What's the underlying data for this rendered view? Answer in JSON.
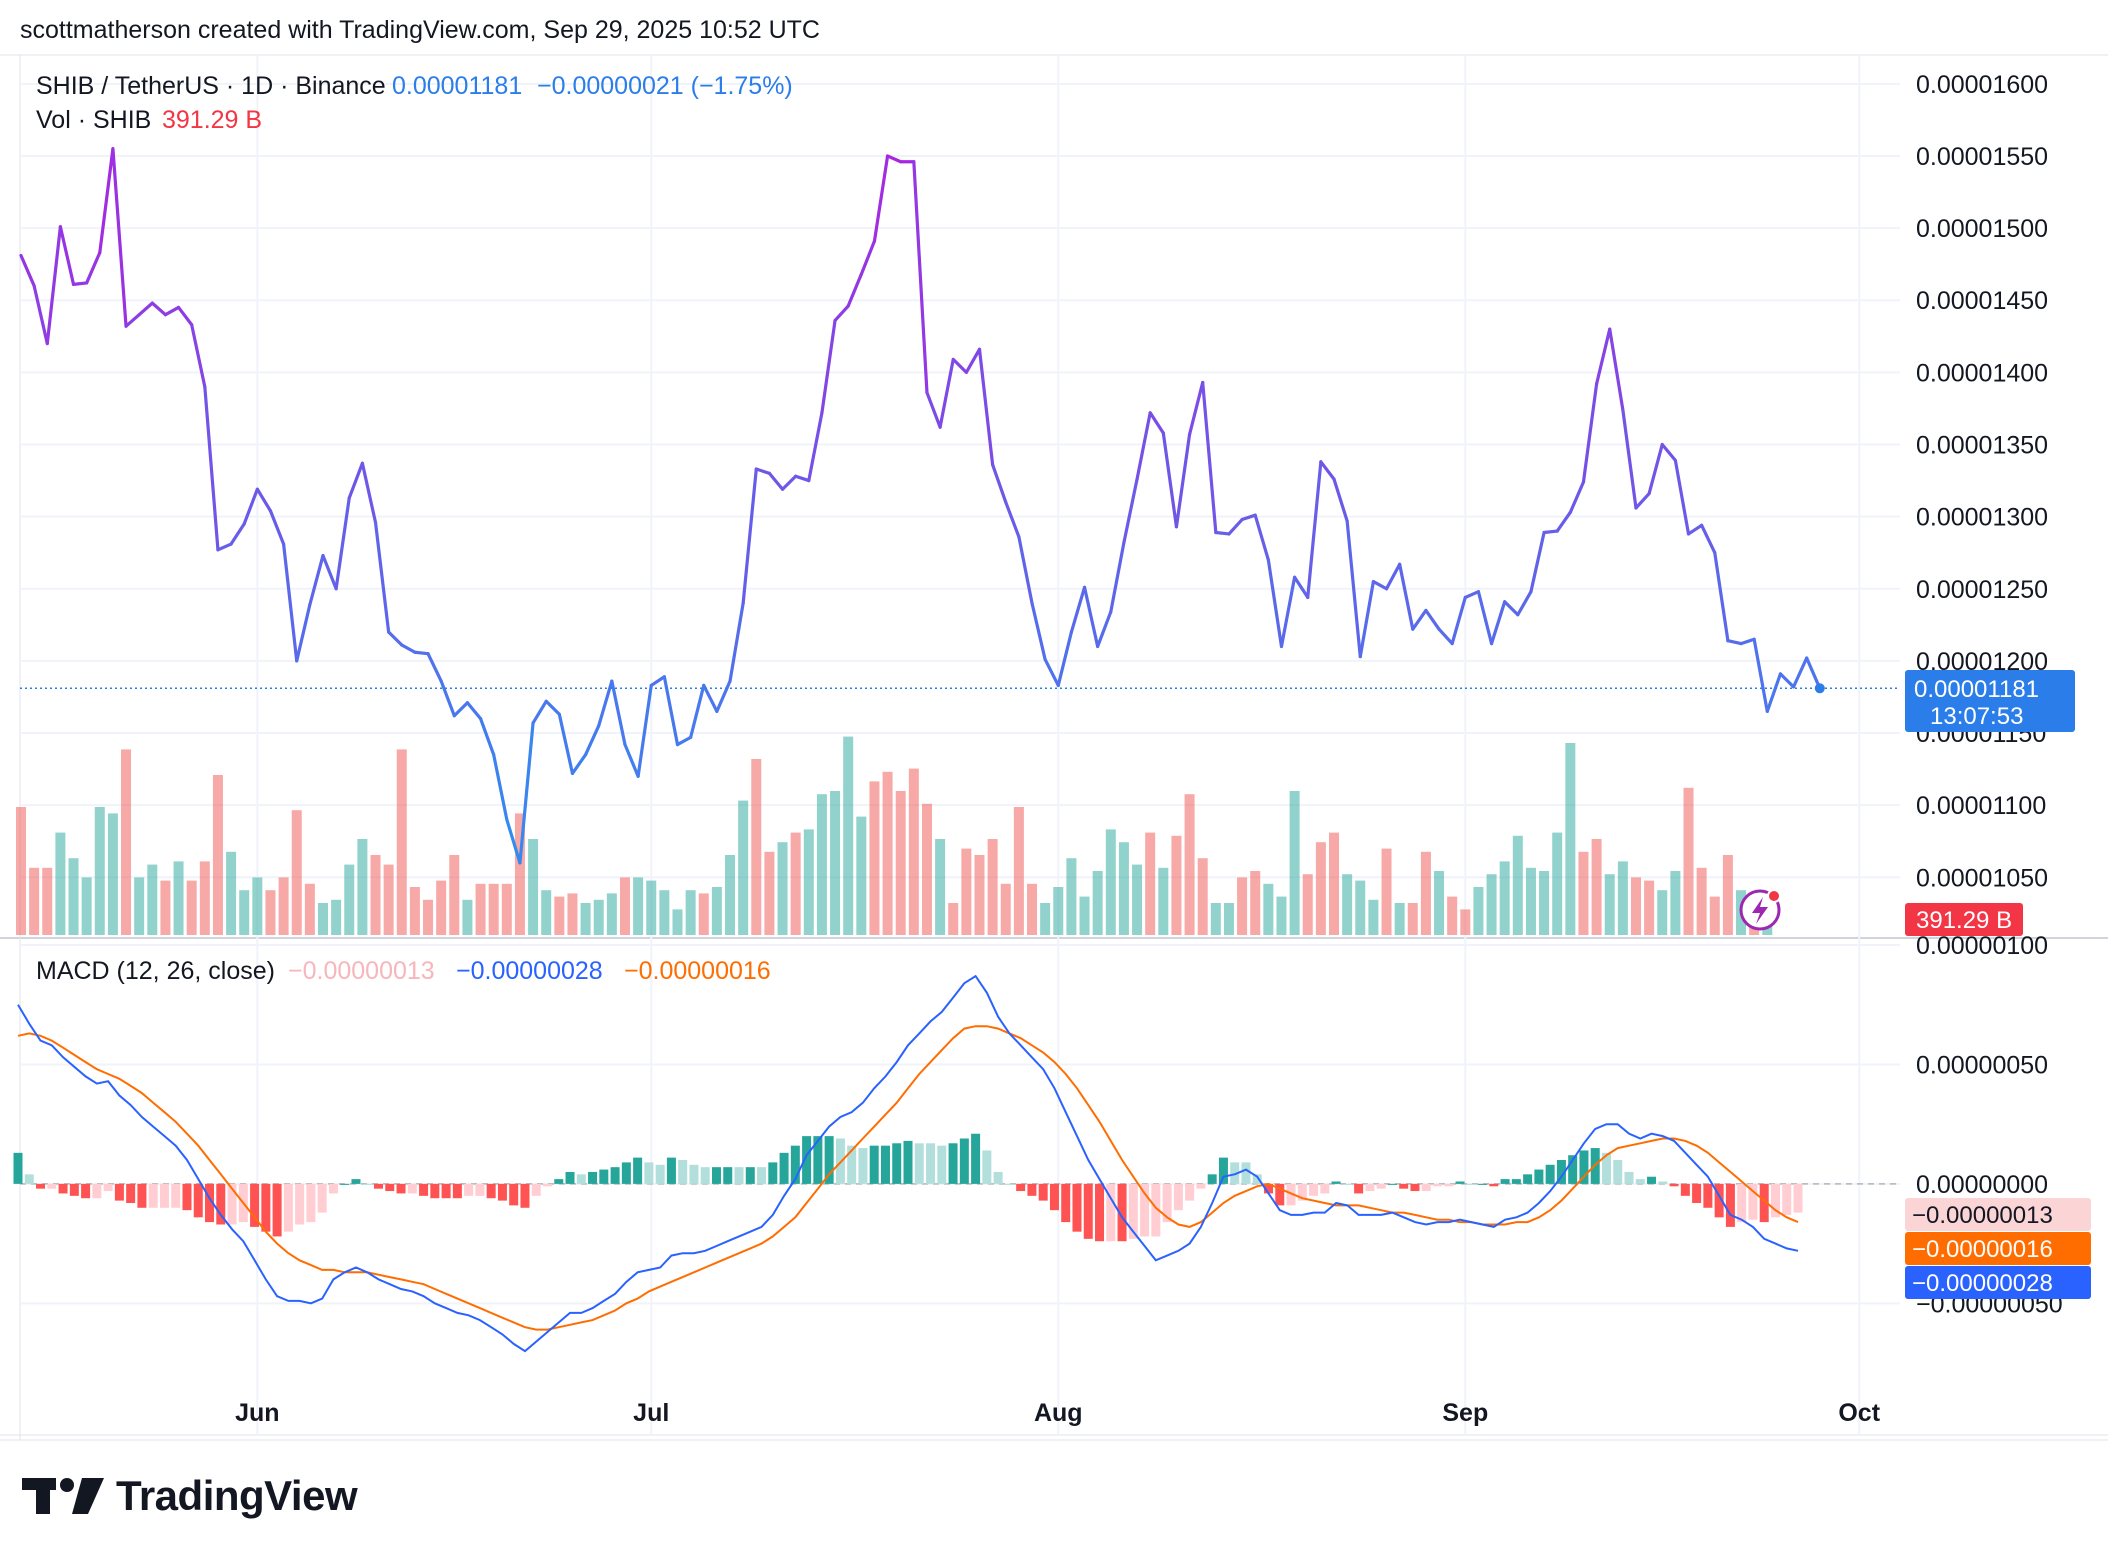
{
  "header": {
    "attribution": "scottmatherson created with TradingView.com, Sep 29, 2025 10:52 UTC"
  },
  "legend": {
    "symbol": "SHIB / TetherUS · 1D · Binance",
    "price": "0.00001181",
    "change": "−0.00000021 (−1.75%)",
    "vol_label": "Vol · SHIB",
    "vol_value": "391.29 B",
    "macd_label": "MACD (12, 26, close)",
    "macd_hist": "−0.00000013",
    "macd_line": "−0.00000028",
    "macd_signal": "−0.00000016"
  },
  "badges": {
    "price": "0.00001181",
    "countdown": "13:07:53",
    "volume": "391.29 B",
    "macd_hist": "−0.00000013",
    "macd_signal": "−0.00000016",
    "macd_line": "−0.00000028"
  },
  "brand": {
    "name": "TradingView"
  },
  "colors": {
    "up": "#26a69a",
    "down": "#ef5350",
    "up_light": "#b2dfdb",
    "down_light": "#ffcdd2",
    "macd": "#2962ff",
    "signal": "#ff6d00",
    "price_purple": "#a826e0",
    "price_blue": "#2e8ff0",
    "badge_blue": "#2b7de9",
    "badge_red": "#f23645",
    "badge_orange": "#ff6d00",
    "badge_pink": "#fbd4d6"
  },
  "icons": {
    "alert": "lightning-alert-icon",
    "logo": "tradingview-logo-icon"
  },
  "chart_data": {
    "type": "line",
    "x_start": "2025-05-14",
    "x_end": "2025-09-29",
    "x_ticks": [
      "Jun",
      "Jul",
      "Aug",
      "Sep",
      "Oct"
    ],
    "price": {
      "close": [
        1.481e-05,
        1.46e-05,
        1.42e-05,
        1.501e-05,
        1.461e-05,
        1.462e-05,
        1.483e-05,
        1.555e-05,
        1.432e-05,
        1.44e-05,
        1.448e-05,
        1.44e-05,
        1.445e-05,
        1.433e-05,
        1.39e-05,
        1.277e-05,
        1.281e-05,
        1.295e-05,
        1.319e-05,
        1.304e-05,
        1.281e-05,
        1.2e-05,
        1.239e-05,
        1.273e-05,
        1.25e-05,
        1.313e-05,
        1.337e-05,
        1.296e-05,
        1.22e-05,
        1.211e-05,
        1.206e-05,
        1.205e-05,
        1.186e-05,
        1.162e-05,
        1.171e-05,
        1.16e-05,
        1.135e-05,
        1.09e-05,
        1.06e-05,
        1.157e-05,
        1.172e-05,
        1.163e-05,
        1.122e-05,
        1.135e-05,
        1.155e-05,
        1.186e-05,
        1.142e-05,
        1.12e-05,
        1.183e-05,
        1.189e-05,
        1.142e-05,
        1.147e-05,
        1.183e-05,
        1.165e-05,
        1.186e-05,
        1.24e-05,
        1.333e-05,
        1.33e-05,
        1.319e-05,
        1.328e-05,
        1.325e-05,
        1.372e-05,
        1.436e-05,
        1.446e-05,
        1.468e-05,
        1.491e-05,
        1.55e-05,
        1.546e-05,
        1.546e-05,
        1.386e-05,
        1.362e-05,
        1.409e-05,
        1.4e-05,
        1.416e-05,
        1.336e-05,
        1.31e-05,
        1.286e-05,
        1.24e-05,
        1.201e-05,
        1.183e-05,
        1.22e-05,
        1.251e-05,
        1.21e-05,
        1.234e-05,
        1.282e-05,
        1.326e-05,
        1.372e-05,
        1.358e-05,
        1.293e-05,
        1.357e-05,
        1.393e-05,
        1.289e-05,
        1.288e-05,
        1.298e-05,
        1.301e-05,
        1.27e-05,
        1.21e-05,
        1.258e-05,
        1.244e-05,
        1.338e-05,
        1.326e-05,
        1.297e-05,
        1.203e-05,
        1.255e-05,
        1.25e-05,
        1.267e-05,
        1.222e-05,
        1.235e-05,
        1.222e-05,
        1.212e-05,
        1.244e-05,
        1.248e-05,
        1.212e-05,
        1.241e-05,
        1.232e-05,
        1.248e-05,
        1.289e-05,
        1.29e-05,
        1.303e-05,
        1.324e-05,
        1.392e-05,
        1.43e-05,
        1.374e-05,
        1.306e-05,
        1.316e-05,
        1.35e-05,
        1.339e-05,
        1.288e-05,
        1.294e-05,
        1.275e-05,
        1.214e-05,
        1.212e-05,
        1.215e-05,
        1.165e-05,
        1.191e-05,
        1.182e-05,
        1.202e-05,
        1.181e-05
      ],
      "color_switch_after": 1.33e-05,
      "last": 1.181e-05
    },
    "volume": {
      "unit": "SHIB",
      "bars": [
        [
          40,
          "d"
        ],
        [
          21,
          "d"
        ],
        [
          21,
          "d"
        ],
        [
          32,
          "u"
        ],
        [
          24,
          "u"
        ],
        [
          18,
          "u"
        ],
        [
          40,
          "u"
        ],
        [
          38,
          "u"
        ],
        [
          58,
          "d"
        ],
        [
          18,
          "u"
        ],
        [
          22,
          "u"
        ],
        [
          17,
          "d"
        ],
        [
          23,
          "u"
        ],
        [
          17,
          "d"
        ],
        [
          23,
          "d"
        ],
        [
          50,
          "d"
        ],
        [
          26,
          "u"
        ],
        [
          14,
          "u"
        ],
        [
          18,
          "u"
        ],
        [
          14,
          "d"
        ],
        [
          18,
          "d"
        ],
        [
          39,
          "d"
        ],
        [
          16,
          "d"
        ],
        [
          10,
          "u"
        ],
        [
          11,
          "u"
        ],
        [
          22,
          "u"
        ],
        [
          30,
          "u"
        ],
        [
          25,
          "d"
        ],
        [
          22,
          "d"
        ],
        [
          58,
          "d"
        ],
        [
          15,
          "d"
        ],
        [
          11,
          "d"
        ],
        [
          17,
          "d"
        ],
        [
          25,
          "d"
        ],
        [
          11,
          "u"
        ],
        [
          16,
          "d"
        ],
        [
          16,
          "d"
        ],
        [
          16,
          "d"
        ],
        [
          38,
          "d"
        ],
        [
          30,
          "u"
        ],
        [
          14,
          "u"
        ],
        [
          12,
          "d"
        ],
        [
          13,
          "d"
        ],
        [
          10,
          "u"
        ],
        [
          11,
          "u"
        ],
        [
          13,
          "u"
        ],
        [
          18,
          "d"
        ],
        [
          18,
          "u"
        ],
        [
          17,
          "u"
        ],
        [
          14,
          "u"
        ],
        [
          8,
          "u"
        ],
        [
          14,
          "u"
        ],
        [
          13,
          "d"
        ],
        [
          15,
          "u"
        ],
        [
          25,
          "u"
        ],
        [
          42,
          "u"
        ],
        [
          55,
          "d"
        ],
        [
          26,
          "d"
        ],
        [
          29,
          "u"
        ],
        [
          32,
          "d"
        ],
        [
          33,
          "u"
        ],
        [
          44,
          "u"
        ],
        [
          45,
          "u"
        ],
        [
          62,
          "u"
        ],
        [
          37,
          "u"
        ],
        [
          48,
          "d"
        ],
        [
          51,
          "d"
        ],
        [
          45,
          "d"
        ],
        [
          52,
          "d"
        ],
        [
          41,
          "d"
        ],
        [
          30,
          "u"
        ],
        [
          10,
          "d"
        ],
        [
          27,
          "d"
        ],
        [
          25,
          "d"
        ],
        [
          30,
          "d"
        ],
        [
          16,
          "d"
        ],
        [
          40,
          "d"
        ],
        [
          16,
          "d"
        ],
        [
          10,
          "u"
        ],
        [
          15,
          "u"
        ],
        [
          24,
          "u"
        ],
        [
          12,
          "u"
        ],
        [
          20,
          "u"
        ],
        [
          33,
          "u"
        ],
        [
          29,
          "u"
        ],
        [
          22,
          "u"
        ],
        [
          32,
          "d"
        ],
        [
          21,
          "u"
        ],
        [
          31,
          "d"
        ],
        [
          44,
          "d"
        ],
        [
          24,
          "d"
        ],
        [
          10,
          "u"
        ],
        [
          10,
          "u"
        ],
        [
          18,
          "d"
        ],
        [
          20,
          "d"
        ],
        [
          16,
          "u"
        ],
        [
          12,
          "u"
        ],
        [
          45,
          "u"
        ],
        [
          19,
          "d"
        ],
        [
          29,
          "d"
        ],
        [
          32,
          "d"
        ],
        [
          19,
          "u"
        ],
        [
          17,
          "u"
        ],
        [
          11,
          "u"
        ],
        [
          27,
          "d"
        ],
        [
          10,
          "u"
        ],
        [
          10,
          "d"
        ],
        [
          26,
          "d"
        ],
        [
          20,
          "u"
        ],
        [
          12,
          "d"
        ],
        [
          8,
          "d"
        ],
        [
          15,
          "u"
        ],
        [
          19,
          "u"
        ],
        [
          23,
          "u"
        ],
        [
          31,
          "u"
        ],
        [
          21,
          "u"
        ],
        [
          20,
          "u"
        ],
        [
          32,
          "u"
        ],
        [
          60,
          "u"
        ],
        [
          26,
          "d"
        ],
        [
          30,
          "d"
        ],
        [
          19,
          "u"
        ],
        [
          23,
          "u"
        ],
        [
          18,
          "d"
        ],
        [
          17,
          "d"
        ],
        [
          14,
          "u"
        ],
        [
          20,
          "u"
        ],
        [
          46,
          "d"
        ],
        [
          21,
          "d"
        ],
        [
          12,
          "d"
        ],
        [
          25,
          "d"
        ],
        [
          14,
          "u"
        ],
        [
          7,
          "d"
        ],
        [
          5,
          "u"
        ]
      ]
    },
    "macd": {
      "macd": [
        7.5e-07,
        6.7e-07,
        6e-07,
        5.8e-07,
        5.3e-07,
        4.9e-07,
        4.5e-07,
        4.2e-07,
        4.3e-07,
        3.7e-07,
        3.3e-07,
        2.8e-07,
        2.4e-07,
        2e-07,
        1.6e-07,
        1e-07,
        2e-08,
        -6e-08,
        -1.3e-07,
        -1.9e-07,
        -2.4e-07,
        -3.2e-07,
        -4e-07,
        -4.7e-07,
        -4.9e-07,
        -4.9e-07,
        -5e-07,
        -4.8e-07,
        -4e-07,
        -3.7e-07,
        -3.5e-07,
        -3.7e-07,
        -4e-07,
        -4.2e-07,
        -4.4e-07,
        -4.5e-07,
        -4.7e-07,
        -5e-07,
        -5.2e-07,
        -5.4e-07,
        -5.5e-07,
        -5.7e-07,
        -6e-07,
        -6.3e-07,
        -6.7e-07,
        -7e-07,
        -6.6e-07,
        -6.2e-07,
        -5.8e-07,
        -5.4e-07,
        -5.4e-07,
        -5.2e-07,
        -4.9e-07,
        -4.6e-07,
        -4.1e-07,
        -3.7e-07,
        -3.6e-07,
        -3.5e-07,
        -3e-07,
        -2.9e-07,
        -2.9e-07,
        -2.8e-07,
        -2.6e-07,
        -2.4e-07,
        -2.2e-07,
        -2e-07,
        -1.8e-07,
        -1.3e-07,
        -5e-08,
        2e-08,
        1.2e-07,
        1.8e-07,
        2.4e-07,
        2.8e-07,
        3e-07,
        3.4e-07,
        4e-07,
        4.5e-07,
        5.1e-07,
        5.8e-07,
        6.3e-07,
        6.8e-07,
        7.2e-07,
        7.8e-07,
        8.4e-07,
        8.7e-07,
        8e-07,
        7e-07,
        6.3e-07,
        5.8e-07,
        5.3e-07,
        4.8e-07,
        4e-07,
        3e-07,
        2e-07,
        1e-07,
        2e-08,
        -6e-08,
        -1.4e-07,
        -2e-07,
        -2.6e-07,
        -3.2e-07,
        -3e-07,
        -2.8e-07,
        -2.5e-07,
        -1.8e-07,
        -8e-08,
        3e-08,
        4e-08,
        6e-08,
        3e-08,
        -4e-08,
        -1.1e-07,
        -1.3e-07,
        -1.3e-07,
        -1.2e-07,
        -1.2e-07,
        -8e-08,
        -9e-08,
        -1.3e-07,
        -1.3e-07,
        -1.3e-07,
        -1.2e-07,
        -1.4e-07,
        -1.6e-07,
        -1.7e-07,
        -1.6e-07,
        -1.6e-07,
        -1.5e-07,
        -1.6e-07,
        -1.7e-07,
        -1.8e-07,
        -1.5e-07,
        -1.4e-07,
        -1.2e-07,
        -8e-08,
        -3e-08,
        3e-08,
        1e-07,
        1.7e-07,
        2.3e-07,
        2.5e-07,
        2.5e-07,
        2.1e-07,
        1.9e-07,
        2.1e-07,
        2e-07,
        1.8e-07,
        1.3e-07,
        8e-08,
        3e-08,
        -5e-08,
        -1.3e-07,
        -1.5e-07,
        -1.8e-07,
        -2.3e-07,
        -2.5e-07,
        -2.7e-07,
        -2.8e-07
      ],
      "signal": [
        6.2e-07,
        6.3e-07,
        6.2e-07,
        6e-07,
        5.7e-07,
        5.4e-07,
        5.1e-07,
        4.8e-07,
        4.6e-07,
        4.4e-07,
        4.1e-07,
        3.8e-07,
        3.4e-07,
        3e-07,
        2.6e-07,
        2.1e-07,
        1.6e-07,
        1e-07,
        4e-08,
        -2e-08,
        -8e-08,
        -1.4e-07,
        -2e-07,
        -2.5e-07,
        -2.9e-07,
        -3.2e-07,
        -3.4e-07,
        -3.6e-07,
        -3.6e-07,
        -3.7e-07,
        -3.7e-07,
        -3.7e-07,
        -3.8e-07,
        -3.9e-07,
        -4e-07,
        -4.1e-07,
        -4.2e-07,
        -4.4e-07,
        -4.6e-07,
        -4.8e-07,
        -5e-07,
        -5.2e-07,
        -5.4e-07,
        -5.6e-07,
        -5.8e-07,
        -6e-07,
        -6.1e-07,
        -6.1e-07,
        -6e-07,
        -5.9e-07,
        -5.8e-07,
        -5.7e-07,
        -5.5e-07,
        -5.3e-07,
        -5e-07,
        -4.8e-07,
        -4.5e-07,
        -4.3e-07,
        -4.1e-07,
        -3.9e-07,
        -3.7e-07,
        -3.5e-07,
        -3.3e-07,
        -3.1e-07,
        -2.9e-07,
        -2.7e-07,
        -2.5e-07,
        -2.2e-07,
        -1.8e-07,
        -1.4e-07,
        -8e-08,
        -2e-08,
        4e-08,
        9e-08,
        1.4e-07,
        1.9e-07,
        2.4e-07,
        2.9e-07,
        3.4e-07,
        4e-07,
        4.6e-07,
        5.1e-07,
        5.6e-07,
        6.1e-07,
        6.5e-07,
        6.6e-07,
        6.6e-07,
        6.5e-07,
        6.3e-07,
        6.1e-07,
        5.8e-07,
        5.5e-07,
        5.1e-07,
        4.6e-07,
        4e-07,
        3.3e-07,
        2.6e-07,
        1.8e-07,
        1e-07,
        3e-08,
        -4e-08,
        -1e-07,
        -1.4e-07,
        -1.7e-07,
        -1.8e-07,
        -1.6e-07,
        -1.2e-07,
        -8e-08,
        -5e-08,
        -3e-08,
        -1e-08,
        0.0,
        -2e-08,
        -4e-08,
        -6e-08,
        -7e-08,
        -8e-08,
        -9e-08,
        -9e-08,
        -9e-08,
        -1e-07,
        -1.1e-07,
        -1.2e-07,
        -1.2e-07,
        -1.3e-07,
        -1.4e-07,
        -1.5e-07,
        -1.5e-07,
        -1.6e-07,
        -1.6e-07,
        -1.7e-07,
        -1.7e-07,
        -1.7e-07,
        -1.6e-07,
        -1.6e-07,
        -1.4e-07,
        -1.1e-07,
        -7e-08,
        -2e-08,
        3e-08,
        8e-08,
        1.2e-07,
        1.5e-07,
        1.6e-07,
        1.7e-07,
        1.8e-07,
        1.9e-07,
        1.9e-07,
        1.8e-07,
        1.6e-07,
        1.3e-07,
        9e-08,
        5e-08,
        1e-08,
        -3e-08,
        -7e-08,
        -1.1e-07,
        -1.4e-07,
        -1.6e-07
      ]
    },
    "price_axis": {
      "ticks": [
        "0.00001600",
        "0.00001550",
        "0.00001500",
        "0.00001450",
        "0.00001400",
        "0.00001350",
        "0.00001300",
        "0.00001250",
        "0.00001200",
        "0.00001150",
        "0.00001100",
        "0.00001050"
      ],
      "values": [
        1.6e-05,
        1.55e-05,
        1.5e-05,
        1.45e-05,
        1.4e-05,
        1.35e-05,
        1.3e-05,
        1.25e-05,
        1.2e-05,
        1.15e-05,
        1.1e-05,
        1.05e-05
      ],
      "ylim": [
        1.01e-05,
        1.62e-05
      ]
    },
    "macd_axis": {
      "ticks": [
        "0.00000100",
        "0.00000050",
        "0.00000000",
        "−0.00000050"
      ],
      "values": [
        1e-06,
        5e-07,
        0,
        -5e-07
      ],
      "ylim": [
        -8e-07,
        1e-06
      ]
    }
  }
}
